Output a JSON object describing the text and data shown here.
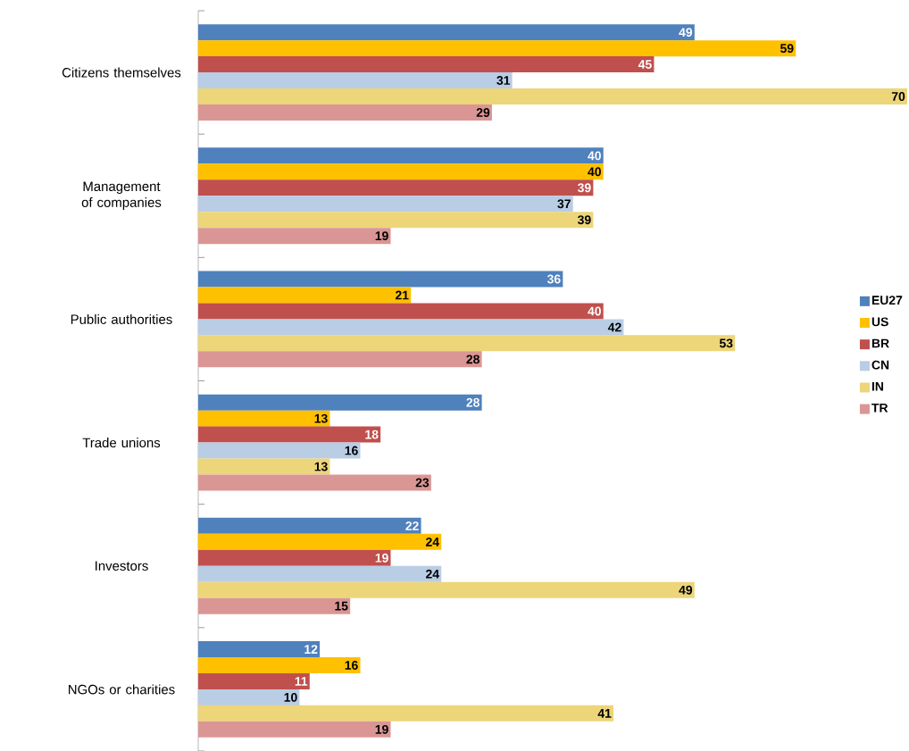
{
  "chart_data": {
    "type": "bar",
    "orientation": "horizontal",
    "data_labels": true,
    "legend": "right",
    "categories": [
      "Citizens themselves",
      "Management of companies",
      "Public authorities",
      "Trade unions",
      "Investors",
      "NGOs or charities"
    ],
    "series": [
      {
        "name": "EU27",
        "color": "#4f81bd",
        "values": [
          49,
          40,
          36,
          28,
          22,
          12
        ]
      },
      {
        "name": "US",
        "color": "#ffc000",
        "values": [
          59,
          40,
          21,
          13,
          24,
          16
        ]
      },
      {
        "name": "BR",
        "color": "#c0504d",
        "values": [
          45,
          39,
          40,
          18,
          19,
          11
        ]
      },
      {
        "name": "CN",
        "color": "#b9cde5",
        "values": [
          31,
          37,
          42,
          16,
          24,
          10
        ]
      },
      {
        "name": "IN",
        "color": "#edd57a",
        "values": [
          70,
          39,
          53,
          13,
          49,
          41
        ]
      },
      {
        "name": "TR",
        "color": "#da9694",
        "values": [
          29,
          19,
          28,
          23,
          15,
          19
        ]
      }
    ]
  }
}
